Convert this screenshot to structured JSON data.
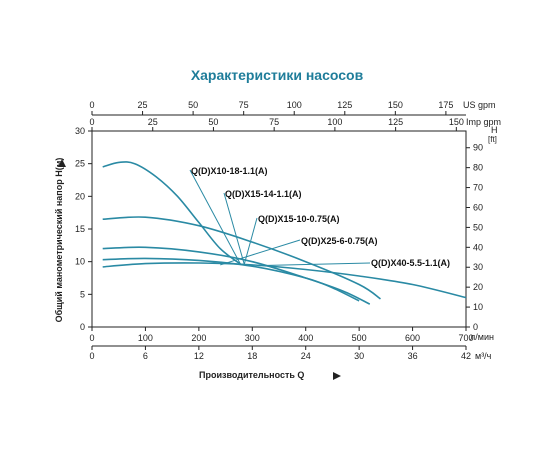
{
  "chart_data": {
    "type": "line",
    "title": "Характеристики насосов",
    "ylabel_left": "Общий манометрический напор H(м)",
    "ylabel_right_unit": "H",
    "ylabel_right_subunit": "[ft]",
    "xlabel": "Производительность Q",
    "xlabel_symbol": "Q",
    "y_left": {
      "ticks": [
        0,
        5,
        10,
        15,
        20,
        25,
        30
      ],
      "range": [
        0,
        30
      ]
    },
    "y_right": {
      "ticks": [
        0,
        10,
        20,
        30,
        40,
        50,
        60,
        70,
        80,
        90
      ],
      "range_ft": [
        0,
        98.4
      ]
    },
    "x_bottom_lmin": {
      "ticks": [
        0,
        100,
        200,
        300,
        400,
        500,
        600,
        700
      ],
      "unit": "л/мин",
      "range": [
        0,
        700
      ]
    },
    "x_bottom_m3h": {
      "ticks": [
        0,
        6,
        12,
        18,
        24,
        30,
        36,
        42
      ],
      "unit": "м³/ч"
    },
    "x_top_usgpm": {
      "ticks": [
        0,
        25,
        50,
        75,
        100,
        125,
        150,
        175
      ],
      "unit": "US gpm"
    },
    "x_top_impgpm": {
      "ticks": [
        0,
        25,
        50,
        75,
        100,
        125,
        150
      ],
      "unit": "Imp gpm"
    },
    "series": [
      {
        "name": "Q(D)X10-18-1.1(A)",
        "color": "#2a8aa4",
        "x": [
          20,
          50,
          80,
          120,
          160,
          200,
          240,
          280
        ],
        "y": [
          24.5,
          25.2,
          25.0,
          23.0,
          20.0,
          16.0,
          12.0,
          9.5
        ]
      },
      {
        "name": "Q(D)X15-14-1.1(A)",
        "color": "#2a8aa4",
        "x": [
          20,
          100,
          200,
          300,
          400,
          500,
          540
        ],
        "y": [
          16.5,
          16.8,
          15.5,
          13.0,
          10.0,
          6.5,
          4.3
        ]
      },
      {
        "name": "Q(D)X15-10-0.75(A)",
        "color": "#2a8aa4",
        "x": [
          20,
          100,
          200,
          300,
          400,
          470,
          520
        ],
        "y": [
          12.0,
          12.2,
          11.5,
          10.0,
          7.5,
          5.5,
          3.5
        ]
      },
      {
        "name": "Q(D)X25-6-0.75(A)",
        "color": "#2a8aa4",
        "x": [
          20,
          100,
          200,
          300,
          400,
          450,
          500
        ],
        "y": [
          10.3,
          10.5,
          10.2,
          9.3,
          7.5,
          6.0,
          4.0
        ]
      },
      {
        "name": "Q(D)X40-5.5-1.1(A)",
        "color": "#2a8aa4",
        "x": [
          20,
          100,
          200,
          300,
          400,
          500,
          600,
          700
        ],
        "y": [
          9.2,
          9.7,
          9.8,
          9.5,
          8.8,
          7.8,
          6.5,
          4.5
        ]
      }
    ],
    "grid": false
  },
  "labels": {
    "l1": "Q(D)X10-18-1.1(A)",
    "l2": "Q(D)X15-14-1.1(A)",
    "l3": "Q(D)X15-10-0.75(A)",
    "l4": "Q(D)X25-6-0.75(A)",
    "l5": "Q(D)X40-5.5-1.1(A)"
  }
}
